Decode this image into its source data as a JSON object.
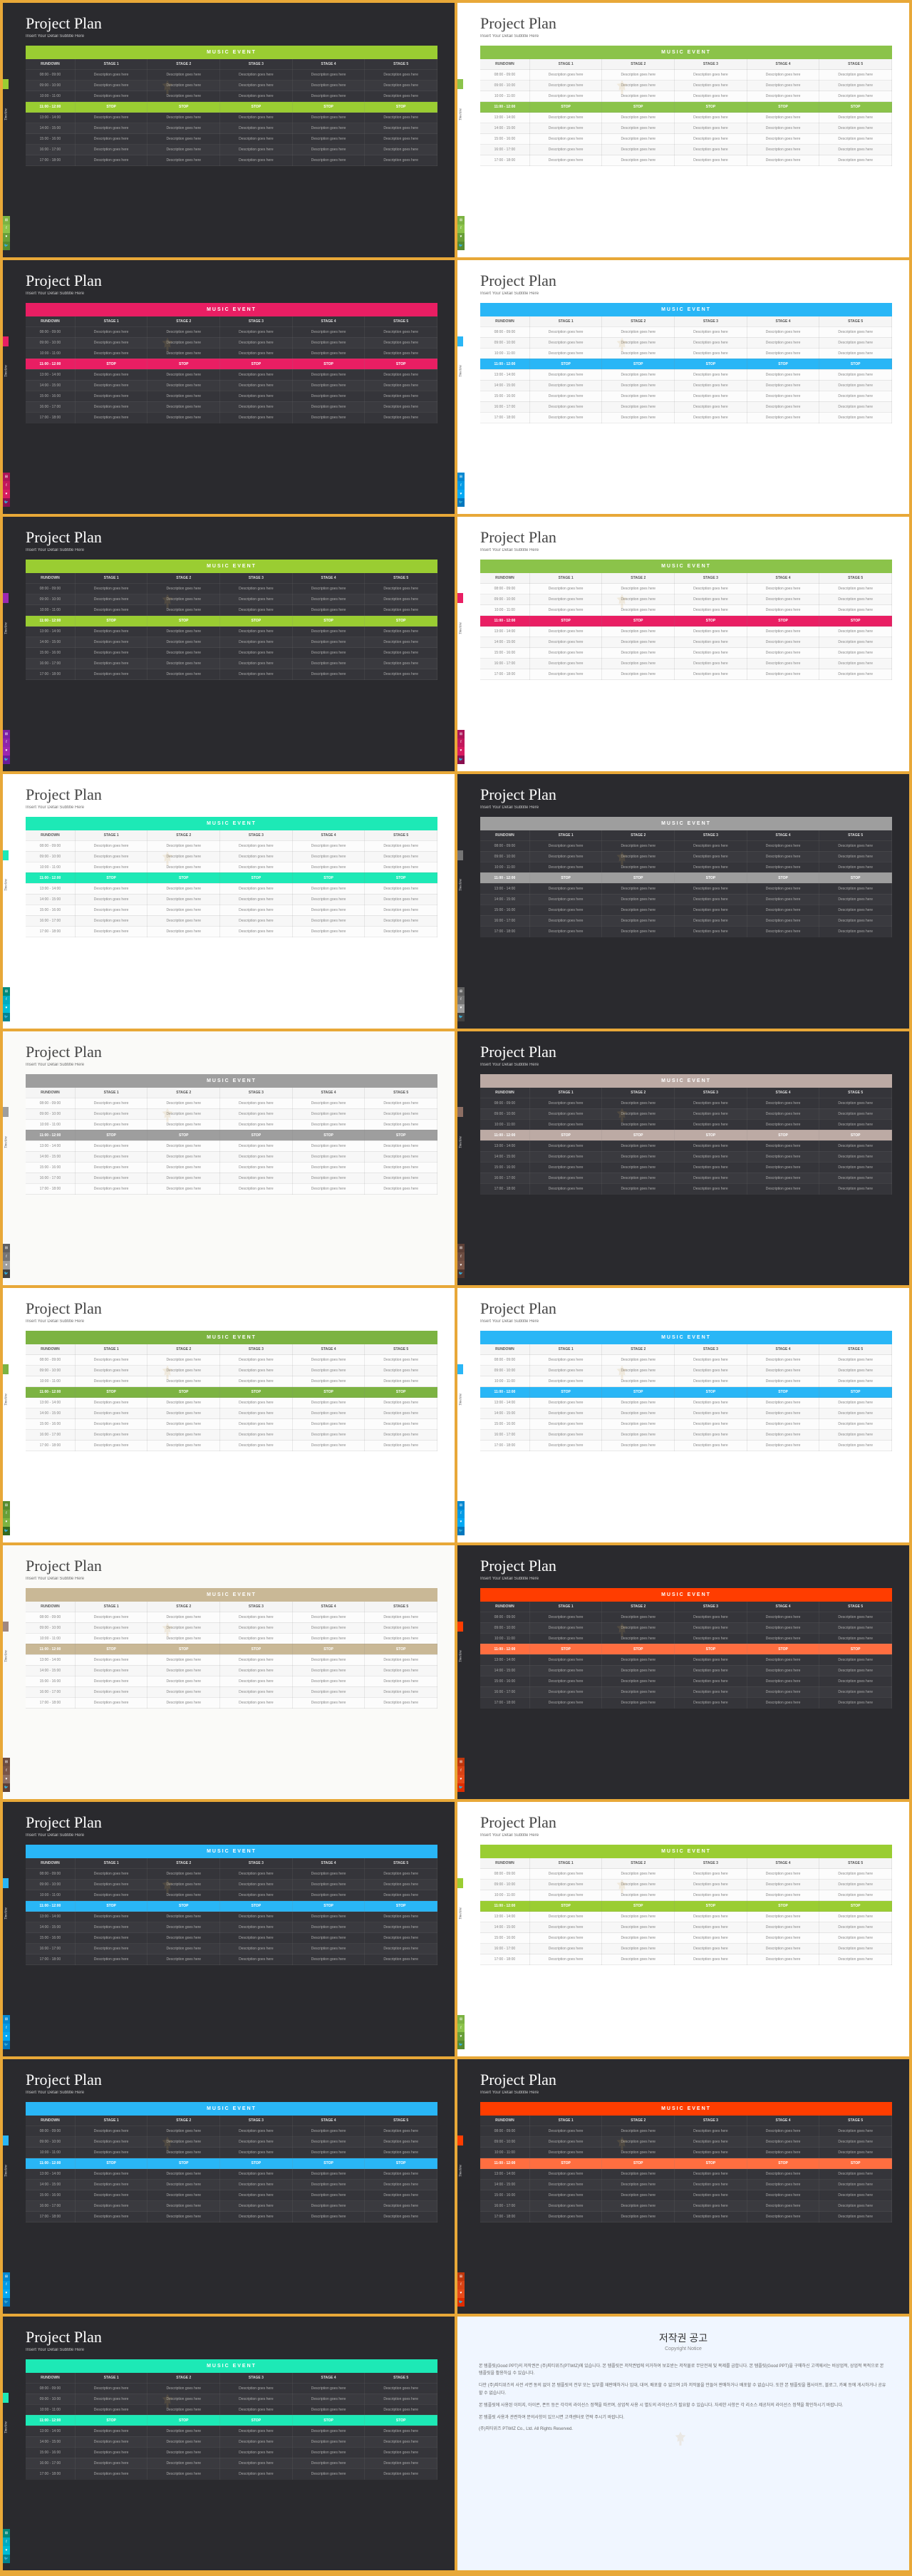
{
  "common": {
    "title": "Project Plan",
    "subtitle": "Insert Your Detail Subtitle Here",
    "banner_text": "MUSIC EVENT",
    "tab_label": "Timeline",
    "headers": [
      "RUNDOWN",
      "STAGE 1",
      "STAGE 2",
      "STAGE 3",
      "STAGE 4",
      "STAGE 5"
    ],
    "times": [
      "08:00 - 09:00",
      "09:00 - 10:00",
      "10:00 - 11:00",
      "11:00 - 12:00",
      "13:00 - 14:00",
      "14:00 - 15:00",
      "15:00 - 16:00",
      "16:00 - 17:00",
      "17:00 - 18:00"
    ],
    "cell_text": "Description goes here",
    "highlight_text": "STOP",
    "highlight_row_index": 3
  },
  "social_icons": [
    "⊞",
    "f",
    "♥",
    "🐦"
  ],
  "slides": [
    {
      "theme": "dark",
      "accent": "#9acd32",
      "tab": "#9acd32",
      "socials": [
        "#7cb342",
        "#8bc34a",
        "#689f38",
        "#558b2f"
      ],
      "highlight": "#9acd32"
    },
    {
      "theme": "light",
      "accent": "#8bc34a",
      "tab": "#8bc34a",
      "socials": [
        "#7cb342",
        "#8bc34a",
        "#689f38",
        "#558b2f"
      ],
      "highlight": "#8bc34a"
    },
    {
      "theme": "dark",
      "accent": "#e91e63",
      "tab": "#e91e63",
      "socials": [
        "#ad1457",
        "#c2185b",
        "#d81b60",
        "#880e4f"
      ],
      "highlight": "#e91e63"
    },
    {
      "theme": "light",
      "accent": "#29b6f6",
      "tab": "#29b6f6",
      "socials": [
        "#0288d1",
        "#039be5",
        "#03a9f4",
        "#0277bd"
      ],
      "highlight": "#29b6f6"
    },
    {
      "theme": "dark",
      "accent": "#9acd32",
      "tab": "#9c27b0",
      "socials": [
        "#7b1fa2",
        "#8e24aa",
        "#9c27b0",
        "#6a1b9a"
      ],
      "highlight": "#9acd32"
    },
    {
      "theme": "light",
      "accent": "#8bc34a",
      "tab": "#e91e63",
      "socials": [
        "#ad1457",
        "#c2185b",
        "#d81b60",
        "#880e4f"
      ],
      "highlight": "#e91e63"
    },
    {
      "theme": "light",
      "accent": "#1de9b6",
      "tab": "#1de9b6",
      "socials": [
        "#00897b",
        "#00acc1",
        "#00bcd4",
        "#00838f"
      ],
      "highlight": "#1de9b6"
    },
    {
      "theme": "dark",
      "accent": "#9e9e9e",
      "tab": "#757575",
      "socials": [
        "#616161",
        "#757575",
        "#9e9e9e",
        "#424242"
      ],
      "highlight": "#9e9e9e"
    },
    {
      "theme": "paper",
      "accent": "#9e9e9e",
      "tab": "#9e9e9e",
      "socials": [
        "#616161",
        "#757575",
        "#9e9e9e",
        "#424242"
      ],
      "highlight": "#9e9e9e"
    },
    {
      "theme": "dark",
      "accent": "#bcaaa4",
      "tab": "#8d6e63",
      "socials": [
        "#5d4037",
        "#6d4c41",
        "#795548",
        "#4e342e"
      ],
      "highlight": "#bcaaa4"
    },
    {
      "theme": "light",
      "accent": "#7cb342",
      "tab": "#7cb342",
      "socials": [
        "#558b2f",
        "#689f38",
        "#7cb342",
        "#33691e"
      ],
      "highlight": "#7cb342"
    },
    {
      "theme": "light",
      "accent": "#29b6f6",
      "tab": "#29b6f6",
      "socials": [
        "#0288d1",
        "#039be5",
        "#03a9f4",
        "#0277bd"
      ],
      "highlight": "#29b6f6"
    },
    {
      "theme": "paper",
      "accent": "#c9b896",
      "tab": "#a1887f",
      "socials": [
        "#6d4c41",
        "#795548",
        "#8d6e63",
        "#5d4037"
      ],
      "highlight": "#c9b896"
    },
    {
      "theme": "dark",
      "accent": "#ff3d00",
      "tab": "#ff3d00",
      "socials": [
        "#bf360c",
        "#d84315",
        "#e64a19",
        "#dd2c00"
      ],
      "highlight": "#ff6e40"
    },
    {
      "theme": "dark",
      "accent": "#29b6f6",
      "tab": "#29b6f6",
      "socials": [
        "#0288d1",
        "#039be5",
        "#03a9f4",
        "#0277bd"
      ],
      "highlight": "#29b6f6"
    },
    {
      "theme": "light",
      "accent": "#9acd32",
      "tab": "#9acd32",
      "socials": [
        "#7cb342",
        "#8bc34a",
        "#689f38",
        "#558b2f"
      ],
      "highlight": "#9acd32"
    },
    {
      "theme": "dark",
      "accent": "#29b6f6",
      "tab": "#29b6f6",
      "socials": [
        "#0288d1",
        "#039be5",
        "#03a9f4",
        "#0277bd"
      ],
      "highlight": "#29b6f6"
    },
    {
      "theme": "dark",
      "accent": "#ff3d00",
      "tab": "#ff3d00",
      "socials": [
        "#bf360c",
        "#d84315",
        "#e64a19",
        "#dd2c00"
      ],
      "highlight": "#ff6e40"
    },
    {
      "theme": "dark",
      "accent": "#1de9b6",
      "tab": "#1de9b6",
      "socials": [
        "#00897b",
        "#00acc1",
        "#00bcd4",
        "#00838f"
      ],
      "highlight": "#1de9b6"
    }
  ],
  "copyright": {
    "title": "저작권 공고",
    "subtitle": "Copyright Notice",
    "lines": [
      "본 템플릿(Good PPT)의 저작권은 (주)피티위즈(PTWIZ)에 있습니다. 본 템플릿은 저작권법에 의거하여 보호받는 저작물로 무단전재 및 복제를 금합니다. 본 템플릿(Good PPT)을 구매하신 고객께서는 비상업적, 상업적 목적으로 본 템플릿을 활용하실 수 있습니다.",
      "다만 (주)피티위즈의 사전 서면 동의 없이 본 템플릿의 전부 또는 일부를 재판매하거나 임대, 대여, 배포할 수 없으며 2차 저작물을 만들어 판매하거나 배포할 수 없습니다. 또한 본 템플릿을 웹사이트, 블로그, 카페 등에 게시하거나 공유할 수 없습니다.",
      "본 템플릿에 사용된 이미지, 아이콘, 폰트 등은 각각의 라이선스 정책을 따르며, 상업적 사용 시 별도의 라이선스가 필요할 수 있습니다. 자세한 사항은 각 리소스 제공처의 라이선스 정책을 확인하시기 바랍니다.",
      "본 템플릿 사용과 관련하여 문의사항이 있으시면 고객센터로 연락 주시기 바랍니다.",
      "(주)피티위즈 PTWIZ Co., Ltd. All Rights Reserved."
    ]
  }
}
